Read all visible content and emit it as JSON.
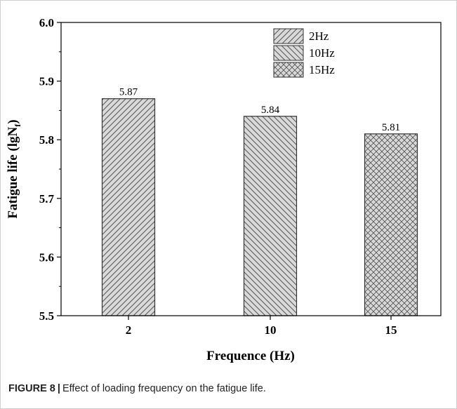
{
  "chart_data": {
    "type": "bar",
    "categories": [
      "2",
      "10",
      "15"
    ],
    "values": [
      5.87,
      5.84,
      5.81
    ],
    "data_labels": [
      "5.87",
      "5.84",
      "5.81"
    ],
    "series": [
      {
        "name": "2Hz",
        "value": 5.87,
        "pattern": "diagonal-up"
      },
      {
        "name": "10Hz",
        "value": 5.84,
        "pattern": "diagonal-down"
      },
      {
        "name": "15Hz",
        "value": 5.81,
        "pattern": "crosshatch"
      }
    ],
    "legend": [
      "2Hz",
      "10Hz",
      "15Hz"
    ],
    "legend_position": "top-right",
    "xlabel": "Frequence (Hz)",
    "ylabel": {
      "main": "Fatigue life (lgN",
      "sub": "f",
      "close": ")"
    },
    "ylim": [
      5.5,
      6.0
    ],
    "yticks": [
      5.5,
      5.6,
      5.7,
      5.8,
      5.9,
      6.0
    ],
    "ytick_labels": [
      "5.5",
      "5.6",
      "5.7",
      "5.8",
      "5.9",
      "6.0"
    ],
    "grid": false,
    "colors": {
      "bar_fill": "#d9d9d9",
      "hatch": "#555555",
      "axis": "#000000"
    }
  },
  "caption": {
    "label": "FIGURE 8",
    "separator": "|",
    "text": "Effect of loading frequency on the fatigue life."
  }
}
